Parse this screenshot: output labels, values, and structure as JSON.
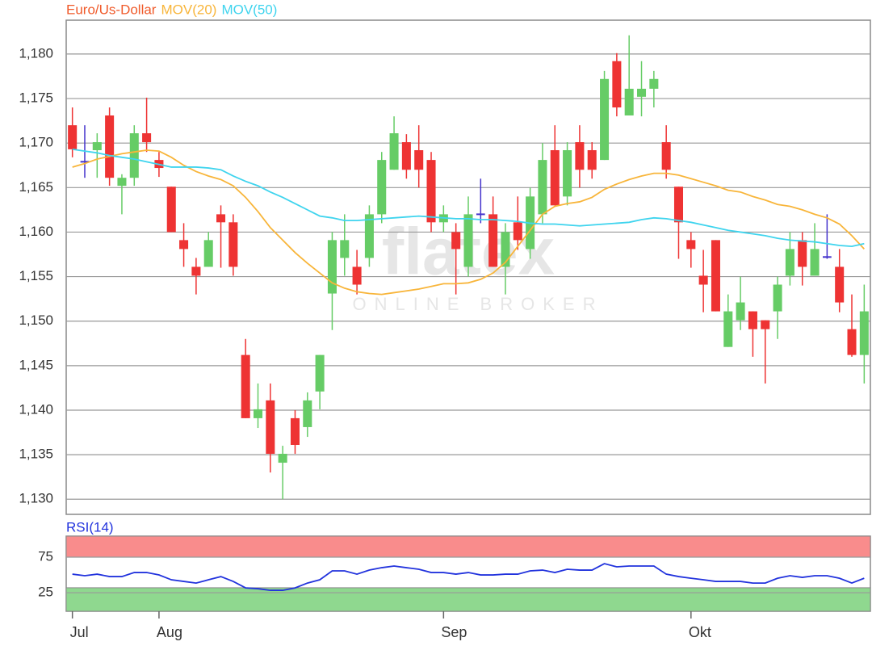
{
  "chart_data": [
    {
      "type": "candlestick",
      "watermark_title": "flatex",
      "watermark_subtitle": "ONLINE BROKER",
      "categories": [
        "Jul",
        null,
        null,
        null,
        null,
        null,
        null,
        "Aug",
        null,
        null,
        null,
        null,
        null,
        null,
        null,
        null,
        null,
        null,
        null,
        null,
        null,
        null,
        null,
        null,
        null,
        null,
        null,
        null,
        null,
        null,
        "Sep",
        null,
        null,
        null,
        null,
        null,
        null,
        null,
        null,
        null,
        null,
        null,
        null,
        null,
        null,
        null,
        null,
        null,
        null,
        null,
        "Okt",
        null,
        null,
        null,
        null,
        null,
        null,
        null,
        null,
        null,
        null,
        null,
        null,
        null,
        null
      ],
      "series": [
        {
          "name": "Euro/Us-Dollar",
          "type": "candlestick",
          "color": "#f05a2a",
          "up_color": "#66cc66",
          "down_color": "#ee3333",
          "doji_color": "#4433cc",
          "open": [
            1.172,
            1.1679,
            1.1692,
            1.1731,
            1.1652,
            1.1661,
            1.1711,
            1.1681,
            1.1651,
            1.1591,
            1.1561,
            1.1561,
            1.162,
            1.1611,
            1.1462,
            1.1391,
            1.1411,
            1.1341,
            1.1391,
            1.1381,
            1.1421,
            1.1531,
            1.1571,
            1.1561,
            1.1571,
            1.162,
            1.167,
            1.1701,
            1.1692,
            1.1681,
            1.1611,
            1.16,
            1.1561,
            1.162,
            1.162,
            1.1561,
            1.1611,
            1.1581,
            1.162,
            1.1692,
            1.164,
            1.1701,
            1.1692,
            1.1681,
            1.1792,
            1.1731,
            1.1752,
            1.1761,
            1.1701,
            1.1651,
            1.1591,
            1.1551,
            1.1591,
            1.1471,
            1.1501,
            1.1511,
            1.1501,
            1.1511,
            1.1551,
            1.1591,
            1.1551,
            1.1572,
            1.1561,
            1.1491,
            1.1462
          ],
          "high": [
            1.174,
            1.172,
            1.1711,
            1.174,
            1.1665,
            1.172,
            1.1751,
            1.169,
            1.1651,
            1.161,
            1.1571,
            1.16,
            1.163,
            1.162,
            1.148,
            1.143,
            1.143,
            1.136,
            1.14,
            1.142,
            1.1462,
            1.16,
            1.162,
            1.158,
            1.163,
            1.169,
            1.173,
            1.171,
            1.172,
            1.169,
            1.163,
            1.161,
            1.164,
            1.166,
            1.164,
            1.161,
            1.164,
            1.165,
            1.17,
            1.172,
            1.1701,
            1.172,
            1.1701,
            1.1781,
            1.1801,
            1.1821,
            1.1792,
            1.1781,
            1.172,
            1.1651,
            1.16,
            1.158,
            1.1591,
            1.153,
            1.155,
            1.1511,
            1.1501,
            1.155,
            1.16,
            1.16,
            1.161,
            1.162,
            1.1581,
            1.153,
            1.1541
          ],
          "low": [
            1.1684,
            1.1661,
            1.1661,
            1.1652,
            1.162,
            1.1652,
            1.169,
            1.1662,
            1.16,
            1.1561,
            1.153,
            1.1561,
            1.156,
            1.1551,
            1.1391,
            1.138,
            1.133,
            1.13,
            1.1351,
            1.137,
            1.1401,
            1.149,
            1.1551,
            1.153,
            1.1561,
            1.161,
            1.167,
            1.166,
            1.165,
            1.16,
            1.16,
            1.153,
            1.155,
            1.161,
            1.1561,
            1.153,
            1.158,
            1.157,
            1.161,
            1.163,
            1.163,
            1.165,
            1.166,
            1.1681,
            1.173,
            1.1731,
            1.173,
            1.174,
            1.166,
            1.157,
            1.156,
            1.151,
            1.1511,
            1.1471,
            1.149,
            1.146,
            1.143,
            1.148,
            1.154,
            1.154,
            1.1551,
            1.157,
            1.151,
            1.146,
            1.143
          ],
          "close": [
            1.1693,
            1.1679,
            1.1701,
            1.1661,
            1.1661,
            1.1711,
            1.1701,
            1.1672,
            1.16,
            1.1581,
            1.1551,
            1.1591,
            1.1611,
            1.1561,
            1.1391,
            1.1401,
            1.1351,
            1.1351,
            1.1361,
            1.1411,
            1.1462,
            1.1591,
            1.1591,
            1.1541,
            1.162,
            1.1681,
            1.1711,
            1.167,
            1.167,
            1.1611,
            1.162,
            1.1581,
            1.162,
            1.162,
            1.1561,
            1.16,
            1.1591,
            1.164,
            1.1681,
            1.163,
            1.1692,
            1.167,
            1.167,
            1.1772,
            1.174,
            1.1761,
            1.1761,
            1.1772,
            1.167,
            1.1611,
            1.1581,
            1.1541,
            1.1511,
            1.1511,
            1.1521,
            1.1491,
            1.1491,
            1.1541,
            1.1581,
            1.1561,
            1.1581,
            1.1572,
            1.1521,
            1.1462,
            1.1511
          ]
        },
        {
          "name": "MOV(20)",
          "type": "line",
          "color": "#f8b53a",
          "values": [
            1.1673,
            1.1677,
            1.1682,
            1.1685,
            1.1688,
            1.169,
            1.1692,
            1.1691,
            1.1684,
            1.1675,
            1.1668,
            1.1663,
            1.1659,
            1.1652,
            1.1639,
            1.1623,
            1.1605,
            1.1591,
            1.1577,
            1.1565,
            1.1554,
            1.1543,
            1.1537,
            1.1533,
            1.1531,
            1.153,
            1.1532,
            1.1534,
            1.1536,
            1.1539,
            1.1542,
            1.1542,
            1.1543,
            1.1547,
            1.1554,
            1.1566,
            1.1584,
            1.1602,
            1.162,
            1.1629,
            1.1632,
            1.1634,
            1.1639,
            1.1648,
            1.1654,
            1.1659,
            1.1663,
            1.1666,
            1.1666,
            1.1664,
            1.166,
            1.1656,
            1.1652,
            1.1647,
            1.1645,
            1.164,
            1.1636,
            1.1631,
            1.1629,
            1.1625,
            1.162,
            1.1616,
            1.1609,
            1.1596,
            1.1581
          ]
        },
        {
          "name": "MOV(50)",
          "type": "line",
          "color": "#3fd4ee",
          "values": [
            1.1693,
            1.1691,
            1.1689,
            1.1686,
            1.1684,
            1.1682,
            1.1679,
            1.1676,
            1.1673,
            1.1673,
            1.1673,
            1.1672,
            1.167,
            1.1663,
            1.1657,
            1.1652,
            1.1645,
            1.1639,
            1.1632,
            1.1625,
            1.1618,
            1.1616,
            1.1613,
            1.1613,
            1.1614,
            1.1615,
            1.1616,
            1.1617,
            1.1618,
            1.1617,
            1.1616,
            1.1615,
            1.1615,
            1.1614,
            1.1614,
            1.1613,
            1.1612,
            1.161,
            1.1609,
            1.1609,
            1.1608,
            1.1607,
            1.1608,
            1.1609,
            1.161,
            1.1611,
            1.1614,
            1.1616,
            1.1615,
            1.1613,
            1.1611,
            1.1608,
            1.1605,
            1.1602,
            1.16,
            1.1598,
            1.1596,
            1.1593,
            1.1591,
            1.159,
            1.1589,
            1.1587,
            1.1585,
            1.1584,
            1.1587
          ]
        }
      ],
      "ylim": [
        1.1283,
        1.1838
      ],
      "yticks": [
        {
          "value": 1.13,
          "label": "1,130"
        },
        {
          "value": 1.135,
          "label": "1,135"
        },
        {
          "value": 1.14,
          "label": "1,140"
        },
        {
          "value": 1.145,
          "label": "1,145"
        },
        {
          "value": 1.15,
          "label": "1,150"
        },
        {
          "value": 1.155,
          "label": "1,155"
        },
        {
          "value": 1.16,
          "label": "1,160"
        },
        {
          "value": 1.165,
          "label": "1,165"
        },
        {
          "value": 1.17,
          "label": "1,170"
        },
        {
          "value": 1.175,
          "label": "1,175"
        },
        {
          "value": 1.18,
          "label": "1,180"
        }
      ],
      "grid": true
    },
    {
      "type": "line",
      "series": [
        {
          "name": "RSI(14)",
          "color": "#2233dd",
          "values": [
            51.1,
            48.9,
            51.1,
            47.7,
            47.7,
            53.4,
            53.4,
            50.0,
            43.2,
            40.9,
            38.6,
            43.2,
            47.7,
            40.9,
            31.8,
            30.7,
            28.4,
            28.4,
            31.8,
            38.6,
            43.2,
            55.7,
            55.7,
            51.1,
            56.8,
            60.2,
            62.5,
            60.2,
            58.0,
            53.4,
            53.4,
            51.1,
            53.4,
            50.0,
            50.0,
            51.1,
            51.1,
            55.7,
            56.8,
            53.4,
            58.0,
            56.8,
            56.8,
            65.9,
            61.4,
            62.5,
            62.5,
            62.5,
            51.1,
            47.7,
            45.4,
            43.2,
            40.9,
            40.9,
            40.9,
            38.6,
            38.6,
            45.4,
            48.9,
            46.6,
            48.9,
            48.9,
            45.4,
            38.6,
            45.4
          ]
        }
      ],
      "zones": [
        {
          "from": 75,
          "to": 104.5,
          "color": "#f98c8c"
        },
        {
          "from": -1,
          "to": 32,
          "color": "#8fd88f"
        }
      ],
      "ylim": [
        -1,
        104.5
      ],
      "yticks": [
        25,
        75
      ],
      "grid": true
    }
  ]
}
